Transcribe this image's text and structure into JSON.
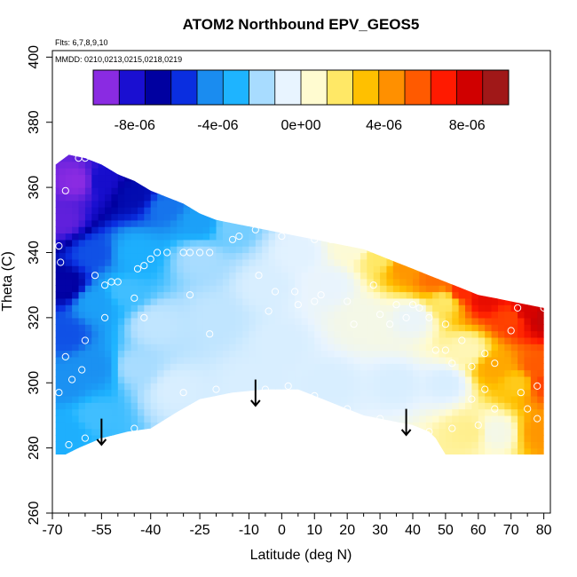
{
  "chart_data": {
    "type": "heatmap",
    "title": "ATOM2 Northbound EPV_GEOS5",
    "annotations": {
      "flights": "Flts: 6,7,8,9,10",
      "dates": "MMDD: 0210,0213,0215,0218,0219"
    },
    "xlabel": "Latitude (deg N)",
    "ylabel": "Theta (C)",
    "xlim": [
      -70,
      82
    ],
    "ylim": [
      260,
      402
    ],
    "x_ticks": [
      -70,
      -55,
      -40,
      -25,
      -10,
      0,
      10,
      20,
      30,
      40,
      50,
      60,
      70,
      80
    ],
    "x_tick_labels": [
      "-70",
      "-55",
      "-40",
      "-25",
      "-10",
      "0",
      "10",
      "20",
      "30",
      "40",
      "50",
      "60",
      "70",
      "80"
    ],
    "x_minor_ticks": [
      -65,
      -60,
      -50,
      -45,
      -35,
      -30,
      -20,
      -15,
      -5,
      5,
      15,
      25,
      35,
      45,
      55,
      65,
      75
    ],
    "y_ticks": [
      260,
      280,
      300,
      320,
      340,
      360,
      380,
      400
    ],
    "y_tick_labels": [
      "260",
      "280",
      "300",
      "320",
      "340",
      "360",
      "380",
      "400"
    ],
    "colorbar": {
      "range": [
        -1e-05,
        1e-05
      ],
      "colors": [
        "#8a2be2",
        "#1a0fd1",
        "#0000a0",
        "#0a2ee0",
        "#1a8cf0",
        "#1eb4ff",
        "#a8dcff",
        "#e8f4ff",
        "#fffbd0",
        "#ffe866",
        "#ffc000",
        "#ff9000",
        "#ff5a00",
        "#ff1a00",
        "#d00000",
        "#a01818"
      ],
      "tick_values": [
        -8e-06,
        -4e-06,
        0,
        4e-06,
        8e-06
      ],
      "tick_labels": [
        "-8e-06",
        "-4e-06",
        "0e+00",
        "4e-06",
        "8e-06"
      ]
    },
    "boundary": {
      "top": [
        [
          -69,
          367
        ],
        [
          -65,
          370
        ],
        [
          -60,
          369
        ],
        [
          -55,
          367
        ],
        [
          -50,
          364
        ],
        [
          -45,
          362
        ],
        [
          -40,
          359
        ],
        [
          -35,
          357
        ],
        [
          -30,
          355
        ],
        [
          -25,
          352
        ],
        [
          -20,
          350
        ],
        [
          -15,
          349
        ],
        [
          -10,
          348
        ],
        [
          -5,
          347
        ],
        [
          0,
          346
        ],
        [
          5,
          345
        ],
        [
          10,
          344
        ],
        [
          15,
          343
        ],
        [
          20,
          342
        ],
        [
          25,
          341
        ],
        [
          30,
          339
        ],
        [
          35,
          337
        ],
        [
          40,
          335
        ],
        [
          45,
          333
        ],
        [
          50,
          331
        ],
        [
          55,
          329
        ],
        [
          60,
          327
        ],
        [
          65,
          326
        ],
        [
          70,
          325
        ],
        [
          75,
          324
        ],
        [
          80,
          323
        ]
      ],
      "bottom": [
        [
          -69,
          278
        ],
        [
          -66,
          278
        ],
        [
          -62,
          280
        ],
        [
          -55,
          283
        ],
        [
          -47,
          285
        ],
        [
          -40,
          286
        ],
        [
          -32,
          291
        ],
        [
          -25,
          295
        ],
        [
          -15,
          297
        ],
        [
          -5,
          298
        ],
        [
          5,
          298
        ],
        [
          10,
          296
        ],
        [
          15,
          294
        ],
        [
          20,
          292
        ],
        [
          25,
          290
        ],
        [
          30,
          289
        ],
        [
          35,
          288
        ],
        [
          40,
          287
        ],
        [
          45,
          285
        ],
        [
          47,
          283
        ],
        [
          50,
          278
        ],
        [
          60,
          278
        ],
        [
          70,
          278
        ],
        [
          80,
          278
        ]
      ]
    },
    "value_anchors": [
      {
        "x": -67,
        "y": 350,
        "v": -9.5e-06
      },
      {
        "x": -62,
        "y": 362,
        "v": -1e-05
      },
      {
        "x": -55,
        "y": 362,
        "v": -8.5e-06
      },
      {
        "x": -45,
        "y": 358,
        "v": -7e-06
      },
      {
        "x": -35,
        "y": 354,
        "v": -5e-06
      },
      {
        "x": -25,
        "y": 350,
        "v": -4e-06
      },
      {
        "x": -15,
        "y": 348,
        "v": -2.5e-06
      },
      {
        "x": -66,
        "y": 330,
        "v": -7.5e-06
      },
      {
        "x": -66,
        "y": 315,
        "v": -5.5e-06
      },
      {
        "x": -66,
        "y": 300,
        "v": -4.5e-06
      },
      {
        "x": -66,
        "y": 285,
        "v": -3.5e-06
      },
      {
        "x": -57,
        "y": 340,
        "v": -5.5e-06
      },
      {
        "x": -57,
        "y": 325,
        "v": -4e-06
      },
      {
        "x": -57,
        "y": 305,
        "v": -4.5e-06
      },
      {
        "x": -57,
        "y": 290,
        "v": -3e-06
      },
      {
        "x": -45,
        "y": 340,
        "v": -3.5e-06
      },
      {
        "x": -48,
        "y": 328,
        "v": -3e-06
      },
      {
        "x": -45,
        "y": 305,
        "v": -2e-06
      },
      {
        "x": -38,
        "y": 318,
        "v": -1.5e-06
      },
      {
        "x": -32,
        "y": 298,
        "v": -1e-06
      },
      {
        "x": -25,
        "y": 338,
        "v": -2e-06
      },
      {
        "x": -20,
        "y": 320,
        "v": -1.5e-06
      },
      {
        "x": -10,
        "y": 300,
        "v": -1e-06
      },
      {
        "x": -5,
        "y": 330,
        "v": -1e-06
      },
      {
        "x": 0,
        "y": 312,
        "v": -1e-06
      },
      {
        "x": 5,
        "y": 340,
        "v": -8e-07
      },
      {
        "x": 15,
        "y": 330,
        "v": -6e-07
      },
      {
        "x": 15,
        "y": 300,
        "v": -1e-06
      },
      {
        "x": 22,
        "y": 342,
        "v": 5e-07
      },
      {
        "x": 25,
        "y": 320,
        "v": 0
      },
      {
        "x": 30,
        "y": 339,
        "v": 2e-06
      },
      {
        "x": 35,
        "y": 300,
        "v": -1e-06
      },
      {
        "x": 38,
        "y": 336,
        "v": 4.5e-06
      },
      {
        "x": 40,
        "y": 320,
        "v": -5e-07
      },
      {
        "x": 47,
        "y": 332,
        "v": 5.5e-06
      },
      {
        "x": 50,
        "y": 325,
        "v": 2e-06
      },
      {
        "x": 50,
        "y": 300,
        "v": -1e-06
      },
      {
        "x": 55,
        "y": 328,
        "v": 7e-06
      },
      {
        "x": 57,
        "y": 310,
        "v": 1e-06
      },
      {
        "x": 58,
        "y": 285,
        "v": 1.5e-06
      },
      {
        "x": 62,
        "y": 326,
        "v": 8e-06
      },
      {
        "x": 65,
        "y": 305,
        "v": 4e-06
      },
      {
        "x": 65,
        "y": 285,
        "v": 0
      },
      {
        "x": 70,
        "y": 320,
        "v": 6.5e-06
      },
      {
        "x": 72,
        "y": 300,
        "v": 3e-06
      },
      {
        "x": 75,
        "y": 322,
        "v": 8.5e-06
      },
      {
        "x": 78,
        "y": 305,
        "v": 6e-06
      },
      {
        "x": 80,
        "y": 320,
        "v": 9e-06
      },
      {
        "x": 80,
        "y": 300,
        "v": 6.5e-06
      },
      {
        "x": 80,
        "y": 285,
        "v": 4.5e-06
      }
    ],
    "obs_points": [
      {
        "x": -67.5,
        "y": 337
      },
      {
        "x": -68,
        "y": 342
      },
      {
        "x": -66,
        "y": 359
      },
      {
        "x": -62,
        "y": 369
      },
      {
        "x": -60,
        "y": 369
      },
      {
        "x": -66,
        "y": 308
      },
      {
        "x": -64,
        "y": 301
      },
      {
        "x": -68,
        "y": 297
      },
      {
        "x": -60,
        "y": 313
      },
      {
        "x": -61,
        "y": 304
      },
      {
        "x": -54,
        "y": 320
      },
      {
        "x": -57,
        "y": 333
      },
      {
        "x": -54,
        "y": 330
      },
      {
        "x": -52,
        "y": 331
      },
      {
        "x": -50,
        "y": 331
      },
      {
        "x": -44,
        "y": 335
      },
      {
        "x": -45,
        "y": 326
      },
      {
        "x": -42,
        "y": 336
      },
      {
        "x": -40,
        "y": 338
      },
      {
        "x": -38,
        "y": 340
      },
      {
        "x": -35,
        "y": 340
      },
      {
        "x": -30,
        "y": 340
      },
      {
        "x": -28,
        "y": 340
      },
      {
        "x": -25,
        "y": 340
      },
      {
        "x": -22,
        "y": 340
      },
      {
        "x": -42,
        "y": 320
      },
      {
        "x": -28,
        "y": 327
      },
      {
        "x": -22,
        "y": 315
      },
      {
        "x": -15,
        "y": 344
      },
      {
        "x": -13,
        "y": 345
      },
      {
        "x": -8,
        "y": 347
      },
      {
        "x": -7,
        "y": 333
      },
      {
        "x": -4,
        "y": 322
      },
      {
        "x": -2,
        "y": 328
      },
      {
        "x": 0,
        "y": 345
      },
      {
        "x": 4,
        "y": 328
      },
      {
        "x": 5,
        "y": 324
      },
      {
        "x": 10,
        "y": 344
      },
      {
        "x": 10,
        "y": 325
      },
      {
        "x": 12,
        "y": 327
      },
      {
        "x": 15,
        "y": 344
      },
      {
        "x": 16,
        "y": 344
      },
      {
        "x": 20,
        "y": 325
      },
      {
        "x": 22,
        "y": 318
      },
      {
        "x": 25,
        "y": 344
      },
      {
        "x": 28,
        "y": 330
      },
      {
        "x": 30,
        "y": 321
      },
      {
        "x": 33,
        "y": 318
      },
      {
        "x": 35,
        "y": 324
      },
      {
        "x": 38,
        "y": 320
      },
      {
        "x": 40,
        "y": 324
      },
      {
        "x": 42,
        "y": 323
      },
      {
        "x": 45,
        "y": 320
      },
      {
        "x": 47,
        "y": 310
      },
      {
        "x": 50,
        "y": 318
      },
      {
        "x": 50,
        "y": 310
      },
      {
        "x": 52,
        "y": 306
      },
      {
        "x": 55,
        "y": 313
      },
      {
        "x": 58,
        "y": 305
      },
      {
        "x": 62,
        "y": 309
      },
      {
        "x": 65,
        "y": 306
      },
      {
        "x": 70,
        "y": 316
      },
      {
        "x": 72,
        "y": 323
      },
      {
        "x": 78,
        "y": 299
      },
      {
        "x": 80,
        "y": 323
      },
      {
        "x": -55,
        "y": 282
      },
      {
        "x": -60,
        "y": 283
      },
      {
        "x": -65,
        "y": 281
      },
      {
        "x": -45,
        "y": 286
      },
      {
        "x": -30,
        "y": 297
      },
      {
        "x": -20,
        "y": 298
      },
      {
        "x": -5,
        "y": 298
      },
      {
        "x": 2,
        "y": 299
      },
      {
        "x": 10,
        "y": 296
      },
      {
        "x": 20,
        "y": 292
      },
      {
        "x": 30,
        "y": 289
      },
      {
        "x": 45,
        "y": 285
      },
      {
        "x": 52,
        "y": 286
      },
      {
        "x": 58,
        "y": 295
      },
      {
        "x": 65,
        "y": 292
      },
      {
        "x": 60,
        "y": 287
      },
      {
        "x": 73,
        "y": 297
      },
      {
        "x": 75,
        "y": 292
      },
      {
        "x": 78,
        "y": 289
      },
      {
        "x": 62,
        "y": 298
      }
    ],
    "arrows": [
      {
        "x": -55,
        "y_top": 289,
        "y_bottom": 281
      },
      {
        "x": -8,
        "y_top": 301,
        "y_bottom": 293
      },
      {
        "x": 38,
        "y_top": 292,
        "y_bottom": 284
      }
    ]
  }
}
